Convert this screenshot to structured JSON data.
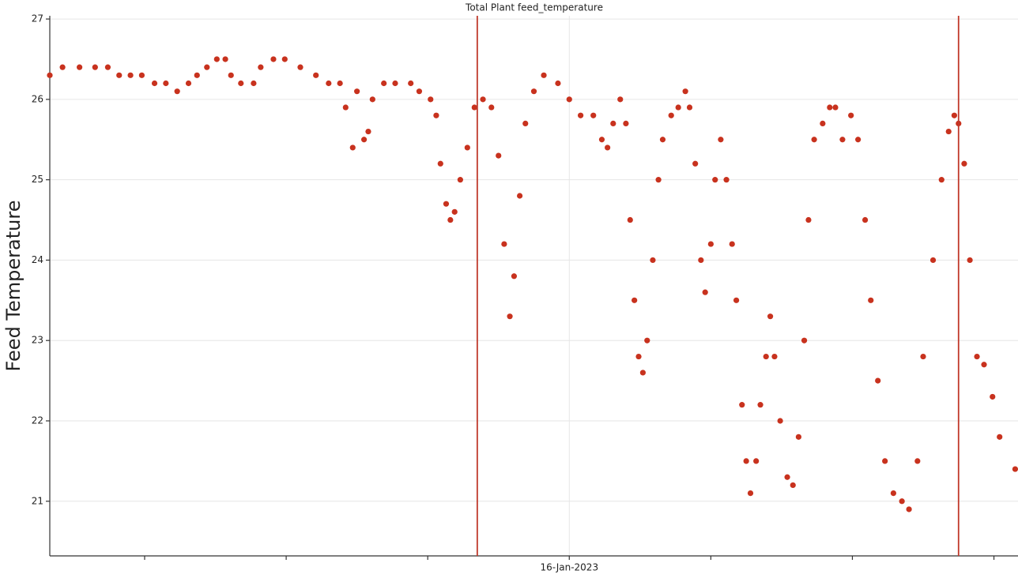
{
  "chart_data": {
    "type": "scatter",
    "title": "Total Plant feed_temperature",
    "y_label": "Feed Temperature",
    "xlim": [
      0.33,
      7.17
    ],
    "ylim": [
      20.32,
      27.04
    ],
    "xticks": [
      {
        "value": 1,
        "label": null
      },
      {
        "value": 2,
        "label": null
      },
      {
        "value": 3,
        "label": null
      },
      {
        "value": 4,
        "label": "16-Jan-2023"
      },
      {
        "value": 5,
        "label": null
      },
      {
        "value": 6,
        "label": null
      },
      {
        "value": 7,
        "label": null
      }
    ],
    "yticks": [
      21,
      22,
      23,
      24,
      25,
      26,
      27
    ],
    "grid": true,
    "vlines": {
      "values": [
        3.35,
        6.75
      ],
      "color": "#c0392b"
    },
    "series": [
      {
        "color": "#c8321e",
        "x": [
          0.33,
          0.42,
          0.54,
          0.65,
          0.74,
          0.82,
          0.9,
          0.98,
          1.07,
          1.15,
          1.23,
          1.31,
          1.37,
          1.44,
          1.51,
          1.57,
          1.61,
          1.68,
          1.77,
          1.82,
          1.91,
          1.99,
          2.1,
          2.21,
          2.3,
          2.38,
          2.42,
          2.47,
          2.5,
          2.55,
          2.58,
          2.61,
          2.69,
          2.77,
          2.88,
          2.94,
          3.02,
          3.06,
          3.09,
          3.13,
          3.16,
          3.19,
          3.23,
          3.28,
          3.33,
          3.39,
          3.45,
          3.5,
          3.54,
          3.58,
          3.61,
          3.65,
          3.69,
          3.75,
          3.82,
          3.92,
          4.0,
          4.08,
          4.17,
          4.23,
          4.27,
          4.31,
          4.36,
          4.4,
          4.43,
          4.46,
          4.49,
          4.52,
          4.55,
          4.59,
          4.63,
          4.66,
          4.72,
          4.77,
          4.82,
          4.85,
          4.89,
          4.93,
          4.96,
          5.0,
          5.03,
          5.07,
          5.11,
          5.15,
          5.18,
          5.22,
          5.25,
          5.28,
          5.32,
          5.35,
          5.39,
          5.42,
          5.45,
          5.49,
          5.54,
          5.58,
          5.62,
          5.66,
          5.69,
          5.73,
          5.79,
          5.84,
          5.88,
          5.93,
          5.99,
          6.04,
          6.09,
          6.13,
          6.18,
          6.23,
          6.29,
          6.35,
          6.4,
          6.46,
          6.5,
          6.57,
          6.63,
          6.68,
          6.72,
          6.75,
          6.79,
          6.83,
          6.88,
          6.93,
          6.99,
          7.04,
          7.15
        ],
        "values": [
          26.3,
          26.4,
          26.4,
          26.4,
          26.4,
          26.3,
          26.3,
          26.3,
          26.2,
          26.2,
          26.1,
          26.2,
          26.3,
          26.4,
          26.5,
          26.5,
          26.3,
          26.2,
          26.2,
          26.4,
          26.5,
          26.5,
          26.4,
          26.3,
          26.2,
          26.2,
          25.9,
          25.4,
          26.1,
          25.5,
          25.6,
          26.0,
          26.2,
          26.2,
          26.2,
          26.1,
          26.0,
          25.8,
          25.2,
          24.7,
          24.5,
          24.6,
          25.0,
          25.4,
          25.9,
          26.0,
          25.9,
          25.3,
          24.2,
          23.3,
          23.8,
          24.8,
          25.7,
          26.1,
          26.3,
          26.2,
          26.0,
          25.8,
          25.8,
          25.5,
          25.4,
          25.7,
          26.0,
          25.7,
          24.5,
          23.5,
          22.8,
          22.6,
          23.0,
          24.0,
          25.0,
          25.5,
          25.8,
          25.9,
          26.1,
          25.9,
          25.2,
          24.0,
          23.6,
          24.2,
          25.0,
          25.5,
          25.0,
          24.2,
          23.5,
          22.2,
          21.5,
          21.1,
          21.5,
          22.2,
          22.8,
          23.3,
          22.8,
          22.0,
          21.3,
          21.2,
          21.8,
          23.0,
          24.5,
          25.5,
          25.7,
          25.9,
          25.9,
          25.5,
          25.8,
          25.5,
          24.5,
          23.5,
          22.5,
          21.5,
          21.1,
          21.0,
          20.9,
          21.5,
          22.8,
          24.0,
          25.0,
          25.6,
          25.8,
          25.7,
          25.2,
          24.0,
          22.8,
          22.7,
          22.3,
          21.8,
          21.4
        ]
      }
    ]
  }
}
